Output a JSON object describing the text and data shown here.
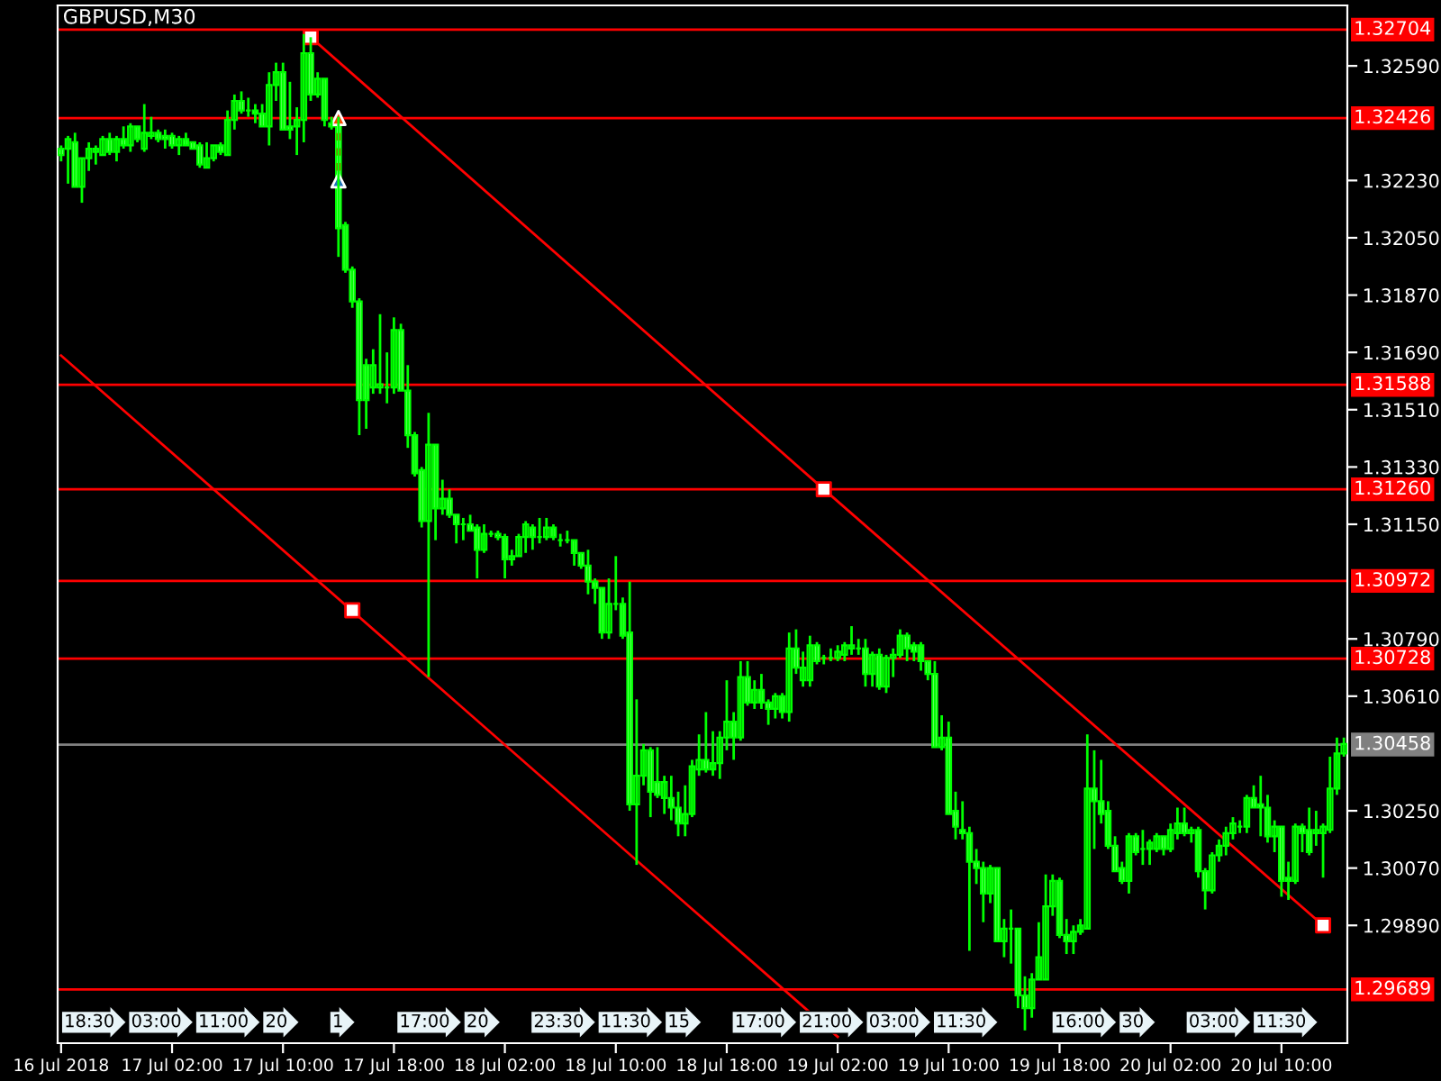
{
  "chart_data": {
    "type": "candlestick",
    "title": "GBPUSD,M30",
    "ylim": [
      1.2952,
      1.3278
    ],
    "categories": [
      "16 Jul 2018",
      null,
      null,
      null,
      null,
      null,
      null,
      null,
      null,
      null,
      null,
      null,
      null,
      null,
      null,
      null,
      "17 Jul 02:00",
      null,
      null,
      null,
      null,
      null,
      null,
      null,
      null,
      null,
      null,
      null,
      null,
      null,
      null,
      null,
      "17 Jul 10:00",
      null,
      null,
      null,
      null,
      null,
      null,
      null,
      null,
      null,
      null,
      null,
      null,
      null,
      null,
      null,
      "17 Jul 18:00",
      null,
      null,
      null,
      null,
      null,
      null,
      null,
      null,
      null,
      null,
      null,
      null,
      null,
      null,
      null,
      "18 Jul 02:00",
      null,
      null,
      null,
      null,
      null,
      null,
      null,
      null,
      null,
      null,
      null,
      null,
      null,
      null,
      null,
      "18 Jul 10:00",
      null,
      null,
      null,
      null,
      null,
      null,
      null,
      null,
      null,
      null,
      null,
      null,
      null,
      null,
      null,
      "18 Jul 18:00",
      null,
      null,
      null,
      null,
      null,
      null,
      null,
      null,
      null,
      null,
      null,
      null,
      null,
      null,
      null,
      "19 Jul 02:00",
      null,
      null,
      null,
      null,
      null,
      null,
      null,
      null,
      null,
      null,
      null,
      null,
      null,
      null,
      null,
      "19 Jul 10:00",
      null,
      null,
      null,
      null,
      null,
      null,
      null,
      null,
      null,
      null,
      null,
      null,
      null,
      null,
      null,
      "19 Jul 18:00",
      null,
      null,
      null,
      null,
      null,
      null,
      null,
      null,
      null,
      null,
      null,
      null,
      null,
      null,
      null,
      "20 Jul 02:00",
      null,
      null,
      null,
      null,
      null,
      null,
      null,
      null,
      null,
      null,
      null,
      null,
      null,
      null,
      null,
      "20 Jul 10:00",
      null,
      null,
      null,
      null,
      null,
      null,
      null,
      null,
      null
    ],
    "yticks": [
      {
        "value": 1.2989,
        "label": "1.29890"
      },
      {
        "value": 1.3007,
        "label": "1.30070"
      },
      {
        "value": 1.3025,
        "label": "1.30250"
      },
      {
        "value": 1.3061,
        "label": "1.30610"
      },
      {
        "value": 1.3079,
        "label": "1.30790"
      },
      {
        "value": 1.3115,
        "label": "1.31150"
      },
      {
        "value": 1.3133,
        "label": "1.31330"
      },
      {
        "value": 1.3151,
        "label": "1.31510"
      },
      {
        "value": 1.3169,
        "label": "1.31690"
      },
      {
        "value": 1.3187,
        "label": "1.31870"
      },
      {
        "value": 1.3205,
        "label": "1.32050"
      },
      {
        "value": 1.3223,
        "label": "1.32230"
      },
      {
        "value": 1.3259,
        "label": "1.32590"
      }
    ],
    "ref_lines": [
      {
        "axis": "y",
        "value": 1.32704,
        "label": "1.32704",
        "color": "#ff0000"
      },
      {
        "axis": "y",
        "value": 1.32426,
        "label": "1.32426",
        "color": "#ff0000"
      },
      {
        "axis": "y",
        "value": 1.31588,
        "label": "1.31588",
        "color": "#ff0000"
      },
      {
        "axis": "y",
        "value": 1.3126,
        "label": "1.31260",
        "color": "#ff0000"
      },
      {
        "axis": "y",
        "value": 1.30972,
        "label": "1.30972",
        "color": "#ff0000"
      },
      {
        "axis": "y",
        "value": 1.30728,
        "label": "1.30728",
        "color": "#ff0000"
      },
      {
        "axis": "y",
        "value": 1.30458,
        "label": "1.30458",
        "color": "#808080"
      },
      {
        "axis": "y",
        "value": 1.29689,
        "label": "1.29689",
        "color": "#ff0000"
      }
    ],
    "annotations": [
      "18:30",
      "03:00",
      "11:00",
      "20",
      "1",
      "17:00",
      "20",
      "23:30",
      "11:30",
      "15",
      "17:00",
      "21:00",
      "03:00",
      "11:30",
      "16:00",
      "30",
      "03:00",
      "11:30"
    ],
    "series": [
      {
        "type": "line",
        "color": "#ff0000",
        "marker": "none",
        "values": [
          null,
          null,
          null,
          null,
          null,
          null,
          null,
          null,
          null,
          null,
          null,
          null,
          null,
          null,
          null,
          null,
          null,
          null,
          null,
          null,
          null,
          null,
          null,
          null,
          null,
          null,
          null,
          null,
          null,
          null,
          null,
          null,
          null,
          null,
          null,
          null,
          1.3268,
          null,
          null,
          null,
          null,
          null,
          null,
          null,
          null,
          null,
          null,
          null,
          null,
          null,
          null,
          null,
          null,
          null,
          null,
          null,
          null,
          null,
          null,
          null,
          null,
          null,
          null,
          null,
          null,
          null,
          null,
          null,
          null,
          null,
          null,
          null,
          null,
          null,
          null,
          null,
          null,
          null,
          null,
          null,
          null,
          null,
          null,
          null,
          null,
          null,
          null,
          null,
          null,
          null,
          null,
          null,
          null,
          null,
          null,
          null,
          null,
          null,
          null,
          null,
          null,
          null,
          null,
          null,
          null,
          null,
          null,
          null,
          null,
          null,
          1.3126,
          null,
          null,
          null,
          null,
          null,
          null,
          null,
          null,
          null,
          null,
          null,
          null,
          null,
          null,
          null,
          null,
          null,
          null,
          null,
          null,
          null,
          null,
          null,
          null,
          null,
          null,
          null,
          null,
          null,
          null,
          null,
          null,
          null,
          null,
          null,
          null,
          null,
          null,
          null,
          null,
          null,
          null,
          null,
          null,
          null,
          null,
          null,
          null,
          null,
          null,
          null,
          null,
          null,
          null,
          null,
          null,
          null,
          null,
          null,
          null,
          null,
          null,
          null,
          null,
          null,
          null,
          null,
          null,
          null,
          null,
          null,
          1.2989,
          null,
          null,
          null
        ]
      },
      {
        "type": "line",
        "color": "#ff0000",
        "marker": "none",
        "values": [
          1.3168,
          null,
          null,
          null,
          null,
          null,
          null,
          null,
          null,
          null,
          null,
          null,
          null,
          null,
          null,
          null,
          null,
          null,
          null,
          null,
          null,
          null,
          null,
          null,
          null,
          null,
          null,
          null,
          null,
          null,
          null,
          null,
          null,
          null,
          null,
          null,
          null,
          null,
          null,
          null,
          null,
          null,
          null,
          null,
          null,
          null,
          null,
          null,
          null,
          null,
          null,
          null,
          null,
          null,
          null,
          null,
          null,
          null,
          null,
          null,
          null,
          null,
          null,
          null,
          null,
          null,
          null,
          null,
          null,
          null,
          null,
          null,
          null,
          null,
          null,
          null,
          null,
          null,
          null,
          null,
          null,
          null,
          null,
          null,
          null,
          null,
          null,
          null,
          null,
          null,
          null,
          null,
          null,
          null,
          null,
          null,
          null,
          null,
          null,
          null,
          null,
          null,
          null,
          null,
          null,
          null,
          null,
          null,
          null,
          null,
          null,
          null,
          1.2954,
          null,
          null,
          null,
          null,
          null,
          null,
          null,
          null,
          null,
          null,
          null,
          null,
          null,
          null,
          null,
          null,
          null,
          null,
          null,
          null,
          null,
          null,
          null,
          null,
          null,
          null,
          null,
          null,
          null,
          null,
          null,
          null,
          null,
          null,
          null,
          null,
          null,
          null,
          null,
          null,
          null,
          null,
          null,
          null,
          null,
          null,
          null,
          null,
          null,
          null,
          null,
          null,
          null,
          null,
          null,
          null,
          null,
          null,
          null,
          null,
          null,
          null,
          null,
          null,
          null,
          null,
          null,
          null,
          null,
          null,
          null,
          null,
          null
        ]
      },
      {
        "type": "scatter",
        "color": "#ff0000",
        "marker": "square",
        "values": [
          null,
          null,
          null,
          null,
          null,
          null,
          null,
          null,
          null,
          null,
          null,
          null,
          null,
          null,
          null,
          null,
          null,
          null,
          null,
          null,
          null,
          null,
          null,
          null,
          null,
          null,
          null,
          null,
          null,
          null,
          null,
          null,
          null,
          null,
          null,
          null,
          1.3268,
          null,
          null,
          null,
          null,
          null,
          1.3088,
          null,
          null,
          null,
          null,
          null,
          null,
          null,
          null,
          null,
          null,
          null,
          null,
          null,
          null,
          null,
          null,
          null,
          null,
          null,
          null,
          null,
          null,
          null,
          null,
          null,
          null,
          null,
          null,
          null,
          null,
          null,
          null,
          null,
          null,
          null,
          null,
          null,
          null,
          null,
          null,
          null,
          null,
          null,
          null,
          null,
          null,
          null,
          null,
          null,
          null,
          null,
          null,
          null,
          null,
          null,
          null,
          null,
          null,
          null,
          null,
          null,
          null,
          null,
          null,
          null,
          null,
          null,
          1.3126,
          null,
          null,
          null,
          null,
          null,
          null,
          null,
          null,
          null,
          null,
          null,
          null,
          null,
          null,
          null,
          null,
          null,
          null,
          null,
          null,
          null,
          null,
          null,
          null,
          null,
          null,
          null,
          null,
          null,
          null,
          null,
          null,
          null,
          null,
          null,
          null,
          null,
          null,
          null,
          null,
          null,
          null,
          null,
          null,
          null,
          null,
          null,
          null,
          null,
          null,
          null,
          null,
          null,
          null,
          null,
          null,
          null,
          null,
          null,
          null,
          null,
          null,
          null,
          null,
          null,
          null,
          null,
          null,
          null,
          null,
          null,
          1.2989,
          null,
          null,
          null
        ]
      },
      {
        "type": "scatter",
        "color": "#ff4500",
        "marker": "triangle",
        "values": [
          null,
          null,
          null,
          null,
          null,
          null,
          null,
          null,
          null,
          null,
          null,
          null,
          null,
          null,
          null,
          null,
          null,
          null,
          null,
          null,
          null,
          null,
          null,
          null,
          null,
          null,
          null,
          null,
          null,
          null,
          null,
          null,
          null,
          null,
          null,
          null,
          null,
          null,
          null,
          null,
          1.32426,
          null,
          null,
          null,
          null,
          null,
          null,
          null,
          null,
          null,
          null,
          null,
          null,
          null,
          null,
          null,
          null,
          null,
          null,
          null,
          null,
          null,
          null,
          null,
          null,
          null,
          null,
          null,
          null,
          null,
          null,
          null,
          null,
          null,
          null,
          null,
          null,
          null,
          null,
          null,
          null,
          null,
          null,
          null,
          null,
          null,
          null,
          null,
          null,
          null,
          null,
          null,
          null,
          null,
          null,
          null,
          null,
          null,
          null,
          null,
          null,
          null,
          null,
          null,
          null,
          null,
          null,
          null,
          null,
          null,
          null,
          null,
          null,
          null,
          null,
          null,
          null,
          null,
          null,
          null,
          null,
          null,
          null,
          null,
          null,
          null,
          null,
          null,
          null,
          null,
          null,
          null,
          null,
          null,
          null,
          null,
          null,
          null,
          null,
          null,
          null,
          null,
          null,
          null,
          null,
          null,
          null,
          null,
          null,
          null,
          null,
          null,
          null,
          null,
          null,
          null,
          null,
          null,
          null,
          null,
          null,
          null,
          null,
          null,
          null,
          null,
          null,
          null,
          null,
          null,
          null,
          null,
          null,
          null,
          null,
          null,
          null,
          null,
          null,
          null,
          null,
          null,
          null,
          null,
          null,
          null
        ]
      },
      {
        "type": "scatter",
        "color": "#1f6fbf",
        "marker": "triangle",
        "values": [
          null,
          null,
          null,
          null,
          null,
          null,
          null,
          null,
          null,
          null,
          null,
          null,
          null,
          null,
          null,
          null,
          null,
          null,
          null,
          null,
          null,
          null,
          null,
          null,
          null,
          null,
          null,
          null,
          null,
          null,
          null,
          null,
          null,
          null,
          null,
          null,
          null,
          null,
          null,
          null,
          1.3223,
          null,
          null,
          null,
          null,
          null,
          null,
          null,
          null,
          null,
          null,
          null,
          null,
          null,
          null,
          null,
          null,
          null,
          null,
          null,
          null,
          null,
          null,
          null,
          null,
          null,
          null,
          null,
          null,
          null,
          null,
          null,
          null,
          null,
          null,
          null,
          null,
          null,
          null,
          null,
          null,
          null,
          null,
          null,
          null,
          null,
          null,
          null,
          null,
          null,
          null,
          null,
          null,
          null,
          null,
          null,
          null,
          null,
          null,
          null,
          null,
          null,
          null,
          null,
          null,
          null,
          null,
          null,
          null,
          null,
          null,
          null,
          null,
          null,
          null,
          null,
          null,
          null,
          null,
          null,
          null,
          null,
          null,
          null,
          null,
          null,
          null,
          null,
          null,
          null,
          null,
          null,
          null,
          null,
          null,
          null,
          null,
          null,
          null,
          null,
          null,
          null,
          null,
          null,
          null,
          null,
          null,
          null,
          null,
          null,
          null,
          null,
          null,
          null,
          null,
          null,
          null,
          null,
          null,
          null,
          null,
          null,
          null,
          null,
          null,
          null,
          null,
          null,
          null,
          null,
          null,
          null,
          null,
          null,
          null,
          null,
          null,
          null,
          null,
          null,
          null,
          null,
          null,
          null,
          null,
          null
        ]
      },
      {
        "color": "#00ff00",
        "ohlc": [
          [
            1.3233,
            1.3234,
            1.3229,
            1.3231
          ],
          [
            1.3233,
            1.3237,
            1.3222,
            1.3236
          ],
          [
            1.3235,
            1.3238,
            1.3221,
            1.3221
          ],
          [
            1.3221,
            1.323,
            1.3216,
            1.323
          ],
          [
            1.323,
            1.3235,
            1.3226,
            1.3233
          ],
          [
            1.3232,
            1.3234,
            1.3228,
            1.3233
          ],
          [
            1.3231,
            1.3237,
            1.3231,
            1.3236
          ],
          [
            1.3236,
            1.3238,
            1.3231,
            1.3232
          ],
          [
            1.3232,
            1.3237,
            1.3229,
            1.3236
          ],
          [
            1.3236,
            1.324,
            1.3233,
            1.3234
          ],
          [
            1.3234,
            1.3241,
            1.3232,
            1.324
          ],
          [
            1.324,
            1.324,
            1.3235,
            1.3236
          ],
          [
            1.3233,
            1.3247,
            1.3232,
            1.3238
          ],
          [
            1.3237,
            1.3243,
            1.3236,
            1.3238
          ],
          [
            1.3238,
            1.3239,
            1.3235,
            1.3236
          ],
          [
            1.3237,
            1.3239,
            1.3233,
            1.3236
          ],
          [
            1.3237,
            1.3238,
            1.3233,
            1.3234
          ],
          [
            1.3234,
            1.3237,
            1.3231,
            1.3236
          ],
          [
            1.3236,
            1.3238,
            1.3234,
            1.3234
          ],
          [
            1.3235,
            1.3235,
            1.3233,
            1.3233
          ],
          [
            1.3234,
            1.3235,
            1.3227,
            1.3228
          ],
          [
            1.3227,
            1.3235,
            1.3227,
            1.323
          ],
          [
            1.323,
            1.3234,
            1.3229,
            1.3234
          ],
          [
            1.3234,
            1.3235,
            1.3231,
            1.3232
          ],
          [
            1.3231,
            1.3245,
            1.3231,
            1.3242
          ],
          [
            1.3242,
            1.325,
            1.3239,
            1.3248
          ],
          [
            1.3248,
            1.3251,
            1.3244,
            1.3245
          ],
          [
            1.3245,
            1.3249,
            1.3243,
            1.3245
          ],
          [
            1.3245,
            1.3247,
            1.3241,
            1.3244
          ],
          [
            1.3244,
            1.3247,
            1.324,
            1.324
          ],
          [
            1.324,
            1.3257,
            1.3234,
            1.3253
          ],
          [
            1.3253,
            1.326,
            1.3248,
            1.3257
          ],
          [
            1.3257,
            1.326,
            1.3239,
            1.3239
          ],
          [
            1.324,
            1.3254,
            1.3236,
            1.3239
          ],
          [
            1.324,
            1.3246,
            1.3231,
            1.3242
          ],
          [
            1.3242,
            1.3269,
            1.3235,
            1.3263
          ],
          [
            1.3263,
            1.3268,
            1.3248,
            1.325
          ],
          [
            1.325,
            1.3257,
            1.3249,
            1.3255
          ],
          [
            1.3255,
            1.3255,
            1.324,
            1.3242
          ],
          [
            1.3241,
            1.3243,
            1.3239,
            1.324
          ],
          [
            1.3241,
            1.3243,
            1.3199,
            1.3208
          ],
          [
            1.3209,
            1.321,
            1.3194,
            1.3195
          ],
          [
            1.3195,
            1.3196,
            1.3183,
            1.3185
          ],
          [
            1.3185,
            1.3186,
            1.3143,
            1.3154
          ],
          [
            1.3165,
            1.3167,
            1.3145,
            1.3154
          ],
          [
            1.3158,
            1.317,
            1.3156,
            1.3165
          ],
          [
            1.3158,
            1.3181,
            1.3156,
            1.3159
          ],
          [
            1.3158,
            1.3169,
            1.3153,
            1.3158
          ],
          [
            1.3158,
            1.318,
            1.3156,
            1.3176
          ],
          [
            1.3176,
            1.3178,
            1.3157,
            1.3157
          ],
          [
            1.3157,
            1.3165,
            1.3139,
            1.3143
          ],
          [
            1.3143,
            1.3144,
            1.313,
            1.3131
          ],
          [
            1.3132,
            1.3133,
            1.3114,
            1.3116
          ],
          [
            1.3116,
            1.315,
            1.3067,
            1.314
          ],
          [
            1.314,
            1.314,
            1.311,
            1.312
          ],
          [
            1.312,
            1.3129,
            1.3118,
            1.3123
          ],
          [
            1.3123,
            1.3126,
            1.3117,
            1.3118
          ],
          [
            1.3118,
            1.3118,
            1.3109,
            1.3115
          ],
          [
            1.3115,
            1.3117,
            1.311,
            1.3115
          ],
          [
            1.3115,
            1.3118,
            1.3113,
            1.3113
          ],
          [
            1.3114,
            1.3115,
            1.3098,
            1.3107
          ],
          [
            1.3107,
            1.3115,
            1.3106,
            1.3112
          ],
          [
            1.3112,
            1.3113,
            1.3111,
            1.3112
          ],
          [
            1.3112,
            1.3113,
            1.311,
            1.3111
          ],
          [
            1.3111,
            1.3112,
            1.3098,
            1.3104
          ],
          [
            1.3104,
            1.3107,
            1.3102,
            1.3105
          ],
          [
            1.3105,
            1.3112,
            1.3105,
            1.3111
          ],
          [
            1.3111,
            1.3116,
            1.3106,
            1.3115
          ],
          [
            1.3114,
            1.3115,
            1.3107,
            1.3111
          ],
          [
            1.3111,
            1.3117,
            1.3109,
            1.3111
          ],
          [
            1.3111,
            1.3117,
            1.311,
            1.3114
          ],
          [
            1.3114,
            1.3115,
            1.311,
            1.3111
          ],
          [
            1.311,
            1.3112,
            1.3108,
            1.311
          ],
          [
            1.311,
            1.3113,
            1.3109,
            1.311
          ],
          [
            1.311,
            1.311,
            1.3102,
            1.3106
          ],
          [
            1.3106,
            1.3106,
            1.3101,
            1.3102
          ],
          [
            1.3102,
            1.3107,
            1.3093,
            1.3097
          ],
          [
            1.3097,
            1.3098,
            1.309,
            1.3095
          ],
          [
            1.3095,
            1.3095,
            1.3079,
            1.3081
          ],
          [
            1.3081,
            1.3098,
            1.3079,
            1.309
          ],
          [
            1.309,
            1.3105,
            1.3088,
            1.309
          ],
          [
            1.309,
            1.3092,
            1.3079,
            1.308
          ],
          [
            1.3081,
            1.3097,
            1.3025,
            1.3027
          ],
          [
            1.3027,
            1.306,
            1.3008,
            1.3036
          ],
          [
            1.3036,
            1.3046,
            1.3033,
            1.3044
          ],
          [
            1.3044,
            1.3045,
            1.3023,
            1.3031
          ],
          [
            1.3034,
            1.3045,
            1.3029,
            1.303
          ],
          [
            1.3029,
            1.3036,
            1.3024,
            1.3034
          ],
          [
            1.3029,
            1.3036,
            1.3022,
            1.3026
          ],
          [
            1.3026,
            1.3031,
            1.3017,
            1.3021
          ],
          [
            1.3021,
            1.3033,
            1.3017,
            1.3024
          ],
          [
            1.3024,
            1.3041,
            1.3023,
            1.3039
          ],
          [
            1.3038,
            1.3049,
            1.3036,
            1.3041
          ],
          [
            1.3041,
            1.3056,
            1.3037,
            1.3038
          ],
          [
            1.3038,
            1.305,
            1.3036,
            1.304
          ],
          [
            1.304,
            1.305,
            1.3035,
            1.3048
          ],
          [
            1.3048,
            1.3066,
            1.3044,
            1.3053
          ],
          [
            1.3053,
            1.3056,
            1.3041,
            1.3048
          ],
          [
            1.3048,
            1.3072,
            1.3047,
            1.3067
          ],
          [
            1.3067,
            1.3072,
            1.3058,
            1.3059
          ],
          [
            1.3059,
            1.3066,
            1.3057,
            1.3063
          ],
          [
            1.3063,
            1.3068,
            1.3057,
            1.3059
          ],
          [
            1.3059,
            1.306,
            1.3052,
            1.3057
          ],
          [
            1.3057,
            1.3062,
            1.3054,
            1.3061
          ],
          [
            1.3061,
            1.3062,
            1.3054,
            1.3056
          ],
          [
            1.3056,
            1.3081,
            1.3053,
            1.3076
          ],
          [
            1.3076,
            1.3082,
            1.3068,
            1.307
          ],
          [
            1.3066,
            1.3075,
            1.3064,
            1.307
          ],
          [
            1.3066,
            1.308,
            1.3064,
            1.3077
          ],
          [
            1.3077,
            1.3078,
            1.3071,
            1.3072
          ],
          [
            1.3073,
            1.3074,
            1.3071,
            1.3073
          ],
          [
            1.3073,
            1.3076,
            1.3072,
            1.3073
          ],
          [
            1.3073,
            1.3077,
            1.3072,
            1.3075
          ],
          [
            1.3074,
            1.3078,
            1.3072,
            1.3077
          ],
          [
            1.3076,
            1.3083,
            1.3074,
            1.3077
          ],
          [
            1.3076,
            1.3079,
            1.3074,
            1.3076
          ],
          [
            1.3076,
            1.3079,
            1.3064,
            1.3068
          ],
          [
            1.3068,
            1.3075,
            1.3064,
            1.3074
          ],
          [
            1.3074,
            1.3076,
            1.3063,
            1.3064
          ],
          [
            1.3064,
            1.3074,
            1.3062,
            1.3073
          ],
          [
            1.3073,
            1.3076,
            1.3067,
            1.3074
          ],
          [
            1.3074,
            1.3082,
            1.3073,
            1.308
          ],
          [
            1.308,
            1.3081,
            1.3072,
            1.3076
          ],
          [
            1.3077,
            1.3078,
            1.3072,
            1.3075
          ],
          [
            1.3077,
            1.3078,
            1.3069,
            1.3072
          ],
          [
            1.3072,
            1.3072,
            1.3066,
            1.3068
          ],
          [
            1.3068,
            1.3072,
            1.3045,
            1.3045
          ],
          [
            1.3045,
            1.3055,
            1.3044,
            1.3048
          ],
          [
            1.3048,
            1.3053,
            1.3024,
            1.3024
          ],
          [
            1.3025,
            1.3031,
            1.3016,
            1.302
          ],
          [
            1.3019,
            1.3028,
            1.3016,
            1.3018
          ],
          [
            1.3018,
            1.302,
            1.2981,
            1.3009
          ],
          [
            1.3009,
            1.3013,
            1.3002,
            1.3007
          ],
          [
            1.3007,
            1.3009,
            1.299,
            1.2999
          ],
          [
            1.2999,
            1.3008,
            1.2996,
            1.3007
          ],
          [
            1.3007,
            1.3007,
            1.2984,
            1.2984
          ],
          [
            1.2984,
            1.2991,
            1.2979,
            1.2988
          ],
          [
            1.2988,
            1.2994,
            1.2977,
            1.2988
          ],
          [
            1.2988,
            1.2988,
            1.2963,
            1.2967
          ],
          [
            1.2967,
            1.2973,
            1.2956,
            1.2963
          ],
          [
            1.2963,
            1.2974,
            1.296,
            1.2972
          ],
          [
            1.2972,
            1.299,
            1.2972,
            1.2979
          ],
          [
            1.2972,
            1.3005,
            1.2972,
            1.2995
          ],
          [
            1.2995,
            1.3005,
            1.2992,
            1.3003
          ],
          [
            1.3003,
            1.3004,
            1.2985,
            1.2986
          ],
          [
            1.2986,
            1.2991,
            1.298,
            1.2984
          ],
          [
            1.2984,
            1.2989,
            1.298,
            1.2987
          ],
          [
            1.2987,
            1.2991,
            1.2986,
            1.2989
          ],
          [
            1.2988,
            1.3049,
            1.2988,
            1.3032
          ],
          [
            1.3032,
            1.3044,
            1.3013,
            1.3028
          ],
          [
            1.3028,
            1.3041,
            1.3021,
            1.3024
          ],
          [
            1.3025,
            1.3028,
            1.3013,
            1.3014
          ],
          [
            1.3014,
            1.3017,
            1.3006,
            1.3006
          ],
          [
            1.3007,
            1.3009,
            1.3002,
            1.3003
          ],
          [
            1.3003,
            1.3018,
            1.2999,
            1.3017
          ],
          [
            1.3017,
            1.3018,
            1.3011,
            1.3012
          ],
          [
            1.3013,
            1.3019,
            1.3008,
            1.3013
          ],
          [
            1.3013,
            1.3016,
            1.3008,
            1.3015
          ],
          [
            1.3013,
            1.3018,
            1.3012,
            1.3017
          ],
          [
            1.3017,
            1.3017,
            1.3011,
            1.3013
          ],
          [
            1.3013,
            1.3021,
            1.3012,
            1.3019
          ],
          [
            1.3018,
            1.3026,
            1.3016,
            1.3021
          ],
          [
            1.3021,
            1.3026,
            1.3017,
            1.3018
          ],
          [
            1.3018,
            1.302,
            1.3015,
            1.3019
          ],
          [
            1.3019,
            1.302,
            1.3004,
            1.3006
          ],
          [
            1.3006,
            1.3007,
            1.2994,
            1.3
          ],
          [
            1.3,
            1.3012,
            1.2999,
            1.3011
          ],
          [
            1.3011,
            1.3016,
            1.3009,
            1.3014
          ],
          [
            1.3014,
            1.302,
            1.3011,
            1.3018
          ],
          [
            1.3018,
            1.3023,
            1.3016,
            1.3021
          ],
          [
            1.302,
            1.3022,
            1.3018,
            1.302
          ],
          [
            1.302,
            1.303,
            1.3018,
            1.3029
          ],
          [
            1.3029,
            1.3033,
            1.3026,
            1.3026
          ],
          [
            1.3027,
            1.3036,
            1.3017,
            1.3026
          ],
          [
            1.3026,
            1.303,
            1.3015,
            1.3017
          ],
          [
            1.3017,
            1.3022,
            1.3012,
            1.302
          ],
          [
            1.302,
            1.302,
            1.2998,
            1.3003
          ],
          [
            1.3004,
            1.3009,
            1.2997,
            1.3003
          ],
          [
            1.3003,
            1.3021,
            1.3002,
            1.302
          ],
          [
            1.302,
            1.3021,
            1.3012,
            1.3018
          ],
          [
            1.3019,
            1.3026,
            1.3011,
            1.3012
          ],
          [
            1.3018,
            1.3025,
            1.3014,
            1.3019
          ],
          [
            1.3018,
            1.3021,
            1.3004,
            1.302
          ],
          [
            1.3019,
            1.3042,
            1.3018,
            1.3032
          ],
          [
            1.3032,
            1.3048,
            1.303,
            1.3043
          ],
          [
            1.3043,
            1.3048,
            1.3042,
            1.3046
          ]
        ]
      }
    ]
  }
}
